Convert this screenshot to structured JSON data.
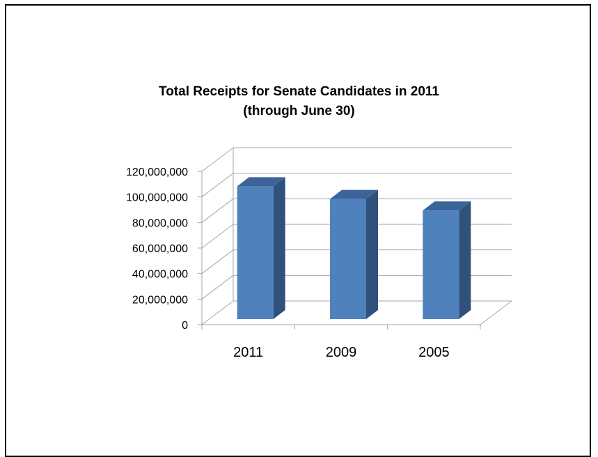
{
  "chart_data": {
    "type": "bar",
    "title_lines": [
      "Total Receipts for Senate Candidates in 2011",
      "(through June 30)"
    ],
    "categories": [
      "2011",
      "2009",
      "2005"
    ],
    "values": [
      104000000,
      94000000,
      85000000
    ],
    "ylim": [
      0,
      120000000
    ],
    "yticks": [
      0,
      20000000,
      40000000,
      60000000,
      80000000,
      100000000,
      120000000
    ],
    "ytick_labels": [
      "0",
      "20,000,000",
      "40,000,000",
      "60,000,000",
      "80,000,000",
      "100,000,000",
      "120,000,000"
    ],
    "xlabel": "",
    "ylabel": "",
    "grid": true,
    "legend": "none",
    "colors": {
      "bar_front": "#4F81BD",
      "bar_top": "#3C639A",
      "bar_side": "#30517C",
      "grid": "#A6A6A6",
      "text": "#000000"
    }
  }
}
